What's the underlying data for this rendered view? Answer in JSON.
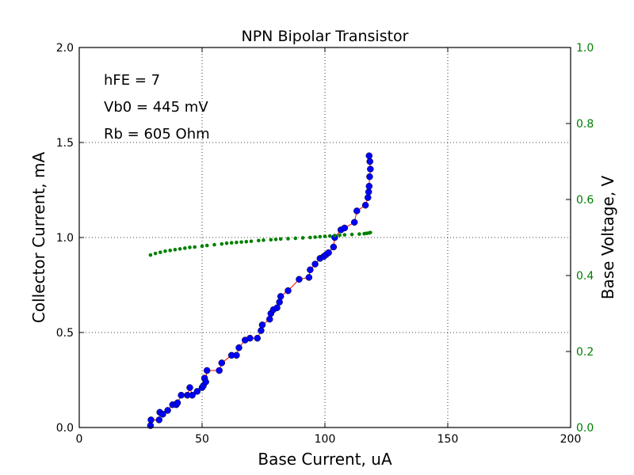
{
  "chart_data": {
    "type": "scatter",
    "title": "NPN Bipolar Transistor",
    "xlabel": "Base Current, uA",
    "ylabel": "Collector Current, mA",
    "y2label": "Base Voltage, V",
    "xlim": [
      0,
      200
    ],
    "ylim": [
      0,
      2.0
    ],
    "y2lim": [
      0,
      1.0
    ],
    "grid": true,
    "xticks": [
      "0",
      "50",
      "100",
      "150",
      "200"
    ],
    "yticks": [
      "0.0",
      "0.5",
      "1.0",
      "1.5",
      "2.0"
    ],
    "y2ticks": [
      "0.0",
      "0.2",
      "0.4",
      "0.6",
      "0.8",
      "1.0"
    ],
    "annotations": [
      "hFE = 7",
      "Vb0 = 445 mV",
      "Rb = 605 Ohm"
    ],
    "colors": {
      "collector_marker": "#0000ff",
      "collector_line": "#ff0000",
      "base_voltage": "#008000",
      "right_axis_text": "#008000"
    },
    "series": [
      {
        "axis": "left",
        "x": [
          29.0,
          29.2,
          32.5,
          32.8,
          34.0,
          36.0,
          38.0,
          39.5,
          40.0,
          41.5,
          44.0,
          45.0,
          46.0,
          48.0,
          50.0,
          50.5,
          51.0,
          51.5,
          52.0,
          57.0,
          58.0,
          62.0,
          64.0,
          65.0,
          67.5,
          69.5,
          72.5,
          74.0,
          74.5,
          77.5,
          78.0,
          79.0,
          80.5,
          81.5,
          82.0,
          85.0,
          89.5,
          93.5,
          94.0,
          96.0,
          98.0,
          99.5,
          100.5,
          101.5,
          103.5,
          104.0,
          106.5,
          108.0,
          112.0,
          113.0,
          116.5,
          117.5,
          117.8,
          118.0,
          118.2,
          118.5,
          118.3,
          118.0
        ],
        "y": [
          0.01,
          0.04,
          0.04,
          0.08,
          0.07,
          0.09,
          0.12,
          0.12,
          0.13,
          0.17,
          0.17,
          0.21,
          0.17,
          0.19,
          0.21,
          0.22,
          0.26,
          0.24,
          0.3,
          0.3,
          0.34,
          0.38,
          0.38,
          0.42,
          0.46,
          0.47,
          0.47,
          0.51,
          0.54,
          0.57,
          0.6,
          0.62,
          0.63,
          0.66,
          0.69,
          0.72,
          0.78,
          0.79,
          0.83,
          0.86,
          0.89,
          0.9,
          0.91,
          0.92,
          0.95,
          1.0,
          1.04,
          1.05,
          1.08,
          1.14,
          1.17,
          1.21,
          1.24,
          1.27,
          1.32,
          1.36,
          1.4,
          1.43
        ]
      },
      {
        "axis": "right",
        "x": [
          29.0,
          31.0,
          33.0,
          35.0,
          37.0,
          39.0,
          41.0,
          43.0,
          45.0,
          47.0,
          50.0,
          52.0,
          55.0,
          58.0,
          60.0,
          62.0,
          64.0,
          66.0,
          68.0,
          70.0,
          73.0,
          75.0,
          78.0,
          80.0,
          82.0,
          85.0,
          88.0,
          91.0,
          94.0,
          96.0,
          98.0,
          100.0,
          102.0,
          104.0,
          106.0,
          108.0,
          111.0,
          114.0,
          116.0,
          117.0,
          118.0,
          118.5
        ],
        "y": [
          0.454,
          0.458,
          0.461,
          0.464,
          0.466,
          0.468,
          0.47,
          0.472,
          0.474,
          0.475,
          0.477,
          0.479,
          0.481,
          0.483,
          0.485,
          0.486,
          0.487,
          0.488,
          0.489,
          0.49,
          0.492,
          0.493,
          0.494,
          0.495,
          0.496,
          0.497,
          0.498,
          0.499,
          0.5,
          0.501,
          0.502,
          0.503,
          0.504,
          0.505,
          0.506,
          0.507,
          0.508,
          0.509,
          0.51,
          0.511,
          0.512,
          0.513
        ]
      }
    ]
  }
}
